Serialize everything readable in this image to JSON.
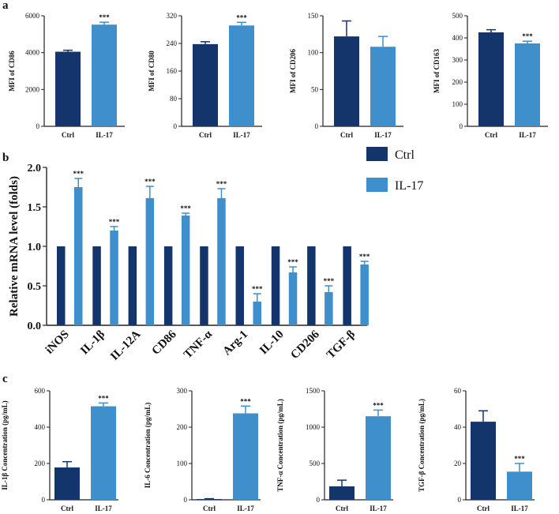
{
  "colors": {
    "ctrl": "#13356b",
    "il17": "#3e8fcc",
    "axis": "#222222",
    "text": "#111111"
  },
  "panel_labels": [
    "a",
    "b",
    "c"
  ],
  "chart_data": [
    {
      "id": "a1",
      "panel": "a",
      "type": "bar",
      "categories": [
        "Ctrl",
        "IL-17"
      ],
      "values": [
        4050,
        5520
      ],
      "errors": [
        80,
        130
      ],
      "significance": [
        "",
        "***"
      ],
      "ylabel": "MFI of CD86",
      "ylim": [
        0,
        6000
      ],
      "yticks": [
        "0",
        "2000",
        "4000",
        "6000"
      ]
    },
    {
      "id": "a2",
      "panel": "a",
      "type": "bar",
      "categories": [
        "Ctrl",
        "IL-17"
      ],
      "values": [
        238,
        292
      ],
      "errors": [
        7,
        9
      ],
      "significance": [
        "",
        "***"
      ],
      "ylabel": "MFI of CD80",
      "ylim": [
        0,
        320
      ],
      "yticks": [
        "0",
        "80",
        "160",
        "240",
        "320"
      ]
    },
    {
      "id": "a3",
      "panel": "a",
      "type": "bar",
      "categories": [
        "Ctrl",
        "IL-17"
      ],
      "values": [
        122,
        108
      ],
      "errors": [
        21,
        14
      ],
      "significance": [
        "",
        ""
      ],
      "ylabel": "MFI of CD206",
      "ylim": [
        0,
        150
      ],
      "yticks": [
        "0",
        "50",
        "100",
        "150"
      ]
    },
    {
      "id": "a4",
      "panel": "a",
      "type": "bar",
      "categories": [
        "Ctrl",
        "IL-17"
      ],
      "values": [
        425,
        375
      ],
      "errors": [
        12,
        10
      ],
      "significance": [
        "",
        "***"
      ],
      "ylabel": "MFI of CD163",
      "ylim": [
        0,
        500
      ],
      "yticks": [
        "0",
        "100",
        "200",
        "300",
        "400",
        "500"
      ]
    },
    {
      "id": "b",
      "panel": "b",
      "type": "bar",
      "categories": [
        "iNOS",
        "IL-1β",
        "IL-12A",
        "CD86",
        "TNF-α",
        "Arg-1",
        "IL-10",
        "CD206",
        "TGF-β"
      ],
      "series": [
        {
          "name": "Ctrl",
          "values": [
            1,
            1,
            1,
            1,
            1,
            1,
            1,
            1,
            1
          ],
          "errors": [
            0,
            0,
            0,
            0,
            0,
            0,
            0,
            0,
            0
          ]
        },
        {
          "name": "IL-17",
          "values": [
            1.75,
            1.2,
            1.61,
            1.39,
            1.61,
            0.3,
            0.67,
            0.42,
            0.77
          ],
          "errors": [
            0.11,
            0.05,
            0.15,
            0.03,
            0.12,
            0.1,
            0.07,
            0.08,
            0.04
          ]
        }
      ],
      "significance": [
        "***",
        "***",
        "***",
        "***",
        "***",
        "***",
        "***",
        "***",
        "***"
      ],
      "ylabel": "Relative mRNA level (folds)",
      "ylim": [
        0,
        2.0
      ],
      "yticks": [
        "0.0",
        "0.5",
        "1.0",
        "1.5",
        "2.0"
      ],
      "legend": [
        "Ctrl",
        "IL-17"
      ],
      "legend_position": "top-right"
    },
    {
      "id": "c1",
      "panel": "c",
      "type": "bar",
      "categories": [
        "Ctrl",
        "IL-17"
      ],
      "values": [
        178,
        515
      ],
      "errors": [
        32,
        18
      ],
      "significance": [
        "",
        "***"
      ],
      "ylabel": "IL-1β Concentration (pg/mL)",
      "ylim": [
        0,
        600
      ],
      "yticks": [
        "0",
        "200",
        "400",
        "600"
      ]
    },
    {
      "id": "c2",
      "panel": "c",
      "type": "bar",
      "categories": [
        "Ctrl",
        "IL-17"
      ],
      "values": [
        2,
        238
      ],
      "errors": [
        1,
        20
      ],
      "significance": [
        "",
        "***"
      ],
      "ylabel": "IL-6 Concentration (pg/mL)",
      "ylim": [
        0,
        300
      ],
      "yticks": [
        "0",
        "100",
        "200",
        "300"
      ]
    },
    {
      "id": "c3",
      "panel": "c",
      "type": "bar",
      "categories": [
        "Ctrl",
        "IL-17"
      ],
      "values": [
        185,
        1150
      ],
      "errors": [
        85,
        85
      ],
      "significance": [
        "",
        "***"
      ],
      "ylabel": "TNF-α Concentration (pg/mL)",
      "ylim": [
        0,
        1500
      ],
      "yticks": [
        "0",
        "500",
        "1000",
        "1500"
      ]
    },
    {
      "id": "c4",
      "panel": "c",
      "type": "bar",
      "categories": [
        "Ctrl",
        "IL-17"
      ],
      "values": [
        43,
        15.5
      ],
      "errors": [
        6,
        4.5
      ],
      "significance": [
        "",
        "***"
      ],
      "ylabel": "TGF-β Concentration (pg/mL)",
      "ylim": [
        0,
        60
      ],
      "yticks": [
        "0",
        "20",
        "40",
        "60"
      ]
    }
  ]
}
